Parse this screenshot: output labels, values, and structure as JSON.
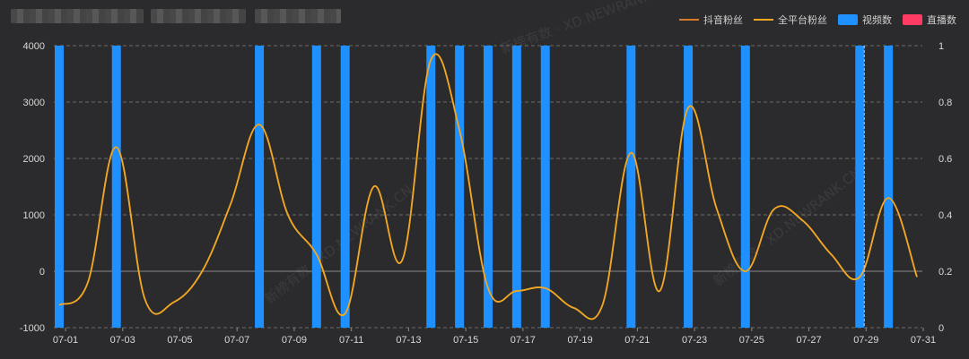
{
  "legend": {
    "douyin_fans": "抖音粉丝",
    "all_platform_fans": "全平台粉丝",
    "video_count": "视频数",
    "live_count": "直播数"
  },
  "watermark": "新榜有数 · XD.NEWRANK.CN",
  "colors": {
    "background": "#2b2b2d",
    "douyin_line": "#d77a2a",
    "all_platform_line": "#f0a823",
    "video_bar": "#1e90ff",
    "live_bar": "#ff3b63",
    "grid": "#6b6b6b"
  },
  "chart_data": {
    "type": "bar+line",
    "categories": [
      "07-01",
      "07-02",
      "07-03",
      "07-04",
      "07-05",
      "07-06",
      "07-07",
      "07-08",
      "07-09",
      "07-10",
      "07-11",
      "07-12",
      "07-13",
      "07-14",
      "07-15",
      "07-16",
      "07-17",
      "07-18",
      "07-19",
      "07-20",
      "07-21",
      "07-22",
      "07-23",
      "07-24",
      "07-25",
      "07-26",
      "07-27",
      "07-28",
      "07-29",
      "07-30",
      "07-31"
    ],
    "x_tick_labels": [
      "07-01",
      "07-03",
      "07-05",
      "07-07",
      "07-09",
      "07-11",
      "07-13",
      "07-15",
      "07-17",
      "07-19",
      "07-21",
      "07-23",
      "07-25",
      "07-27",
      "07-29",
      "07-31"
    ],
    "y_left": {
      "min": -1000,
      "max": 4000,
      "ticks": [
        "4000",
        "3000",
        "2000",
        "1000",
        "0",
        "-1000"
      ]
    },
    "y_right": {
      "min": 0,
      "max": 1,
      "ticks": [
        "1",
        "0.8",
        "0.6",
        "0.4",
        "0.2",
        "0"
      ]
    },
    "grid": true,
    "legend_position": "top-right",
    "series": [
      {
        "name": "视频数",
        "type": "bar",
        "axis": "right",
        "values": [
          1,
          0,
          1,
          0,
          0,
          0,
          0,
          1,
          0,
          1,
          1,
          0,
          0,
          1,
          1,
          1,
          1,
          1,
          0,
          0,
          1,
          0,
          1,
          0,
          1,
          0,
          0,
          0,
          1,
          1,
          0
        ]
      },
      {
        "name": "直播数",
        "type": "bar",
        "axis": "right",
        "values": [
          0,
          0,
          0,
          0,
          0,
          0,
          0,
          0,
          0,
          0,
          0,
          0,
          0,
          0,
          0,
          0,
          0,
          0,
          0,
          0,
          0,
          0,
          0,
          0,
          0,
          0,
          0,
          0,
          0,
          0,
          0
        ]
      },
      {
        "name": "全平台粉丝",
        "type": "line",
        "axis": "left",
        "values": [
          -600,
          -200,
          2200,
          -500,
          -550,
          0,
          1200,
          2600,
          1000,
          300,
          -750,
          1500,
          200,
          3750,
          2500,
          -300,
          -350,
          -300,
          -650,
          -600,
          2100,
          -350,
          2900,
          1100,
          0,
          1100,
          900,
          300,
          -100,
          1300,
          -100
        ]
      },
      {
        "name": "抖音粉丝",
        "type": "line",
        "axis": "left",
        "values": [
          -600,
          -200,
          2200,
          -500,
          -550,
          0,
          1200,
          2600,
          1000,
          300,
          -750,
          1500,
          200,
          3750,
          2500,
          -300,
          -350,
          -300,
          -650,
          -600,
          2100,
          -350,
          2900,
          1100,
          0,
          1100,
          900,
          300,
          -100,
          1300,
          -100
        ]
      }
    ]
  }
}
